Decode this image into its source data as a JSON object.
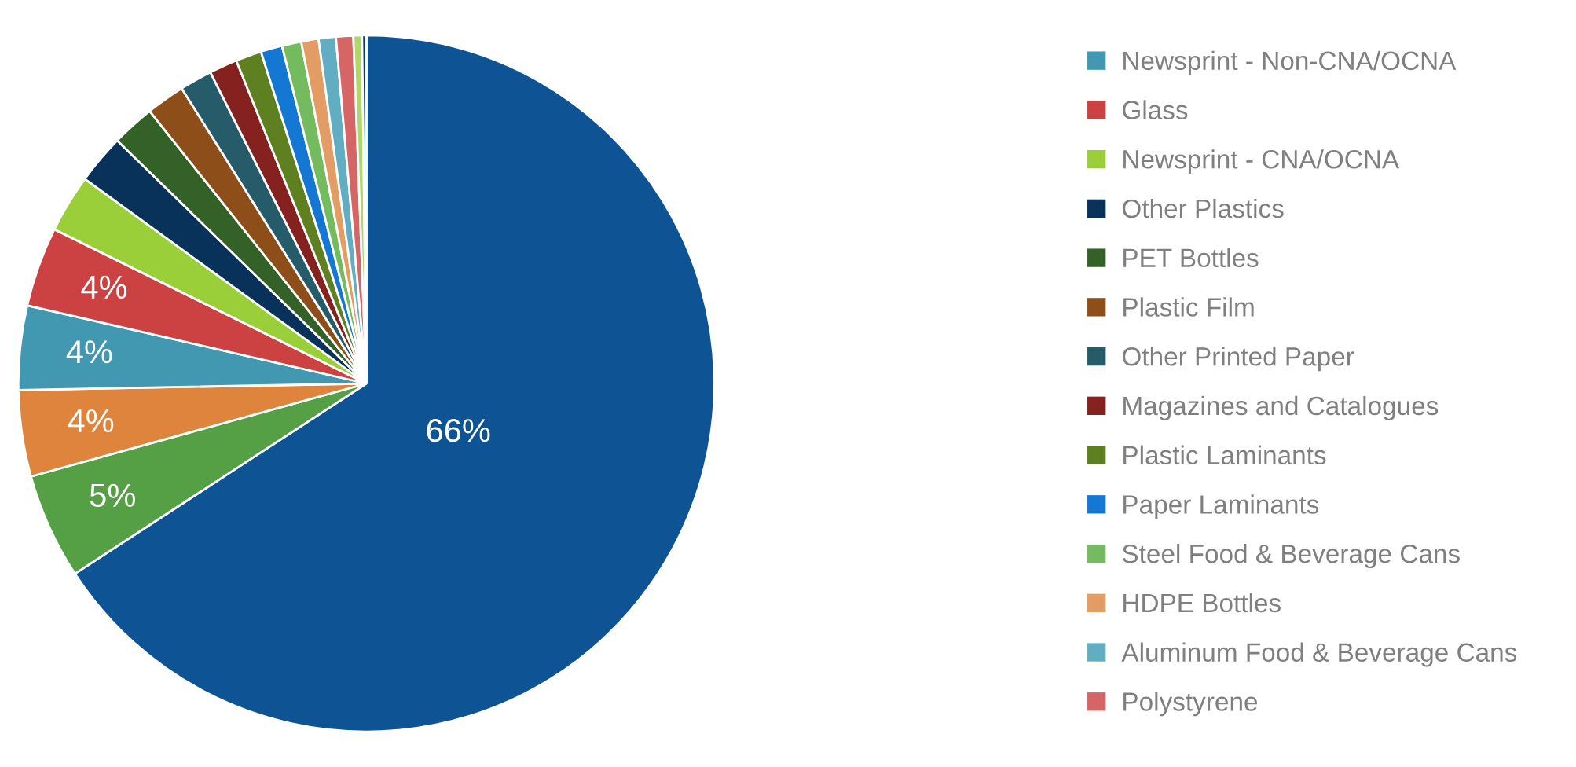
{
  "chart_data": {
    "type": "pie",
    "categories": [
      null,
      null,
      null,
      "Newsprint - Non-CNA/OCNA",
      "Glass",
      "Newsprint - CNA/OCNA",
      "Other Plastics",
      "PET Bottles",
      "Plastic Film",
      "Other Printed Paper",
      "Magazines and Catalogues",
      "Plastic Laminants",
      "Paper Laminants",
      "Steel Food & Beverage Cans",
      "HDPE Bottles",
      "Aluminum Food & Beverage Cans",
      "Polystyrene",
      null,
      null
    ],
    "values": [
      65.8,
      4.9,
      4.0,
      3.9,
      3.7,
      2.7,
      2.3,
      2.0,
      1.8,
      1.5,
      1.3,
      1.2,
      1.0,
      0.9,
      0.8,
      0.8,
      0.8,
      0.4,
      0.2
    ],
    "colors": [
      "#0e5394",
      "#55a045",
      "#de843c",
      "#4298b0",
      "#cc4242",
      "#9acf3a",
      "#08325a",
      "#336128",
      "#8d4e1a",
      "#265b6a",
      "#85211f",
      "#5f8020",
      "#1577d4",
      "#74ba5e",
      "#e39c63",
      "#61aec3",
      "#d66565",
      "#b0d868",
      "#0d3a6a"
    ],
    "value_labels": [
      "66%",
      "5%",
      "4%",
      "4%",
      "4%",
      null,
      null,
      null,
      null,
      null,
      null,
      null,
      null,
      null,
      null,
      null,
      null,
      null,
      null
    ],
    "legend": "right"
  }
}
